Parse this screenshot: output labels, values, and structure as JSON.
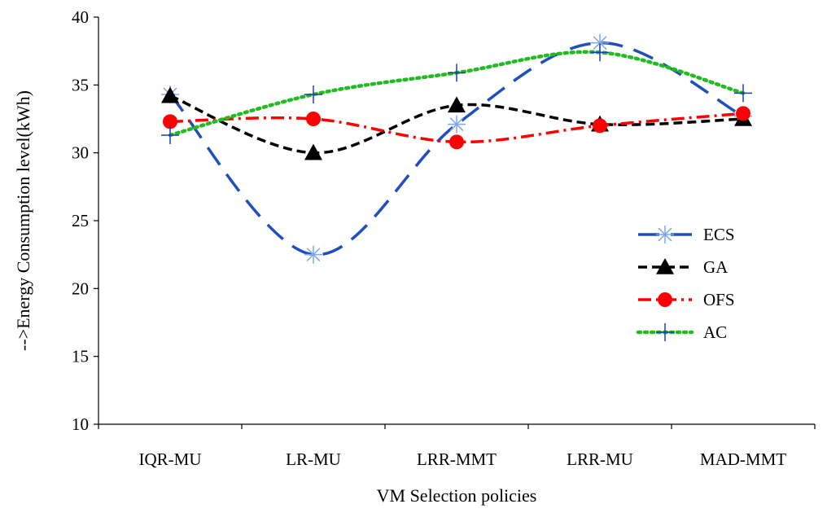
{
  "chart_data": {
    "type": "line",
    "title": "",
    "xlabel": "VM Selection policies",
    "ylabel": "-->Energy Consumption level(kWh)",
    "ylim": [
      10,
      40
    ],
    "yticks": [
      10,
      15,
      20,
      25,
      30,
      35,
      40
    ],
    "categories": [
      "IQR-MU",
      "LR-MU",
      "LRR-MMT",
      "LRR-MU",
      "MAD-MMT"
    ],
    "grid": false,
    "legend_position": "right",
    "series": [
      {
        "name": "ECS",
        "values": [
          34.3,
          22.5,
          32.1,
          38.1,
          32.7
        ],
        "color": "#1f4fbf",
        "dash": "long-dash",
        "marker": "asterisk"
      },
      {
        "name": "GA",
        "values": [
          34.2,
          30.0,
          33.5,
          32.1,
          32.5
        ],
        "color": "#000000",
        "dash": "dash",
        "marker": "triangle"
      },
      {
        "name": "OFS",
        "values": [
          32.3,
          32.5,
          30.8,
          32.0,
          32.9
        ],
        "color": "#ff0000",
        "dash": "dash-dot",
        "marker": "circle"
      },
      {
        "name": "AC",
        "values": [
          31.3,
          34.3,
          35.9,
          37.4,
          34.4
        ],
        "color": "#22bb22",
        "dash": "dot",
        "marker": "plus"
      }
    ]
  }
}
